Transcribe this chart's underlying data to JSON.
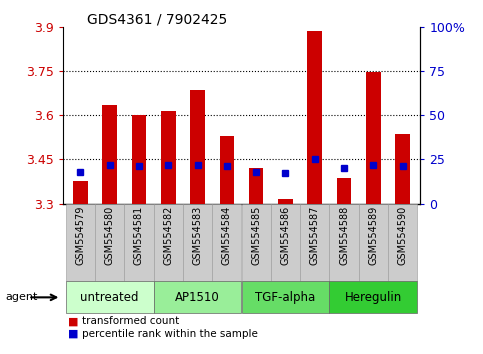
{
  "title": "GDS4361 / 7902425",
  "samples": [
    "GSM554579",
    "GSM554580",
    "GSM554581",
    "GSM554582",
    "GSM554583",
    "GSM554584",
    "GSM554585",
    "GSM554586",
    "GSM554587",
    "GSM554588",
    "GSM554589",
    "GSM554590"
  ],
  "red_values": [
    3.375,
    3.635,
    3.6,
    3.615,
    3.685,
    3.53,
    3.42,
    3.315,
    3.885,
    3.385,
    3.745,
    3.535
  ],
  "blue_percentile": [
    18,
    22,
    21,
    22,
    22,
    21,
    18,
    17,
    25,
    20,
    22,
    21
  ],
  "y_min": 3.3,
  "y_max": 3.9,
  "left_ticks": [
    3.3,
    3.45,
    3.6,
    3.75,
    3.9
  ],
  "right_ticks": [
    0,
    25,
    50,
    75,
    100
  ],
  "bar_color": "#cc0000",
  "blue_color": "#0000cc",
  "grid_lines": [
    3.45,
    3.6,
    3.75
  ],
  "groups": [
    {
      "label": "untreated",
      "start": 0,
      "end": 3,
      "color": "#ccffcc"
    },
    {
      "label": "AP1510",
      "start": 3,
      "end": 6,
      "color": "#99ee99"
    },
    {
      "label": "TGF-alpha",
      "start": 6,
      "end": 9,
      "color": "#66dd66"
    },
    {
      "label": "Heregulin",
      "start": 9,
      "end": 12,
      "color": "#33cc33"
    }
  ],
  "left_tick_color": "#cc0000",
  "right_tick_color": "#0000cc",
  "legend_red": "transformed count",
  "legend_blue": "percentile rank within the sample",
  "bar_bottom": 3.3,
  "xticklabel_bg": "#cccccc",
  "xticklabel_fontsize": 7.0,
  "bar_width": 0.5
}
